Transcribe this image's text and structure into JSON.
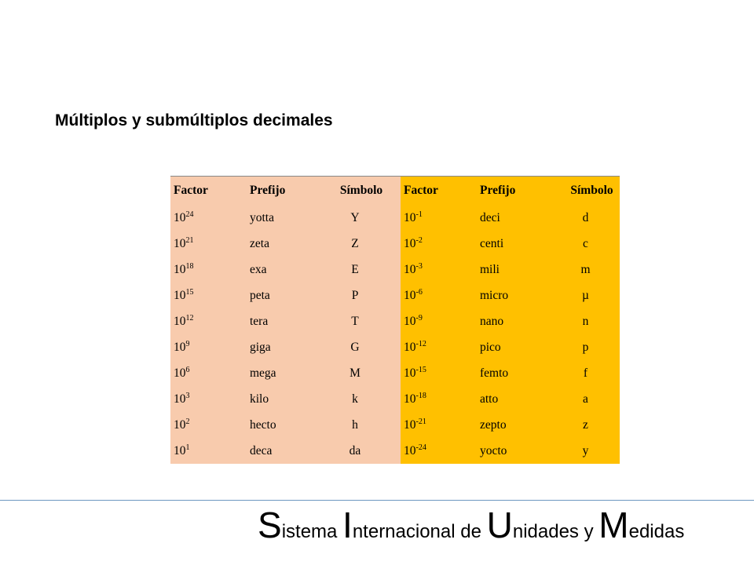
{
  "title": "Múltiplos y submúltiplos decimales",
  "table": {
    "headers": [
      "Factor",
      "Prefijo",
      "Símbolo",
      "Factor",
      "Prefijo",
      "Símbolo"
    ],
    "rows": [
      {
        "m_base": "10",
        "m_exp": "24",
        "m_prefix": "yotta",
        "m_symbol": "Y",
        "s_base": "10",
        "s_exp": "-1",
        "s_prefix": "deci",
        "s_symbol": "d"
      },
      {
        "m_base": "10",
        "m_exp": "21",
        "m_prefix": "zeta",
        "m_symbol": "Z",
        "s_base": "10",
        "s_exp": "-2",
        "s_prefix": "centi",
        "s_symbol": "c"
      },
      {
        "m_base": "10",
        "m_exp": "18",
        "m_prefix": "exa",
        "m_symbol": "E",
        "s_base": "10",
        "s_exp": "-3",
        "s_prefix": "mili",
        "s_symbol": "m"
      },
      {
        "m_base": "10",
        "m_exp": "15",
        "m_prefix": "peta",
        "m_symbol": "P",
        "s_base": "10",
        "s_exp": "-6",
        "s_prefix": "micro",
        "s_symbol": "µ"
      },
      {
        "m_base": "10",
        "m_exp": "12",
        "m_prefix": "tera",
        "m_symbol": "T",
        "s_base": "10",
        "s_exp": "-9",
        "s_prefix": "nano",
        "s_symbol": "n"
      },
      {
        "m_base": "10",
        "m_exp": "9",
        "m_prefix": "giga",
        "m_symbol": "G",
        "s_base": "10",
        "s_exp": "-12",
        "s_prefix": "pico",
        "s_symbol": "p"
      },
      {
        "m_base": "10",
        "m_exp": "6",
        "m_prefix": "mega",
        "m_symbol": "M",
        "s_base": "10",
        "s_exp": "-15",
        "s_prefix": "femto",
        "s_symbol": "f"
      },
      {
        "m_base": "10",
        "m_exp": "3",
        "m_prefix": "kilo",
        "m_symbol": "k",
        "s_base": "10",
        "s_exp": "-18",
        "s_prefix": "atto",
        "s_symbol": "a"
      },
      {
        "m_base": "10",
        "m_exp": "2",
        "m_prefix": "hecto",
        "m_symbol": "h",
        "s_base": "10",
        "s_exp": "-21",
        "s_prefix": "zepto",
        "s_symbol": "z"
      },
      {
        "m_base": "10",
        "m_exp": "1",
        "m_prefix": "deca",
        "m_symbol": "da",
        "s_base": "10",
        "s_exp": "-24",
        "s_prefix": "yocto",
        "s_symbol": "y"
      }
    ]
  },
  "footer": {
    "parts": [
      {
        "big": "S",
        "small": "istema "
      },
      {
        "big": "I",
        "small": "nternacional de "
      },
      {
        "big": "U",
        "small": "nidades y "
      },
      {
        "big": "M",
        "small": "edidas"
      }
    ]
  },
  "colors": {
    "light_fill": "#f8cbad",
    "gold_fill": "#ffc000",
    "footer_rule": "#6e97c1"
  }
}
